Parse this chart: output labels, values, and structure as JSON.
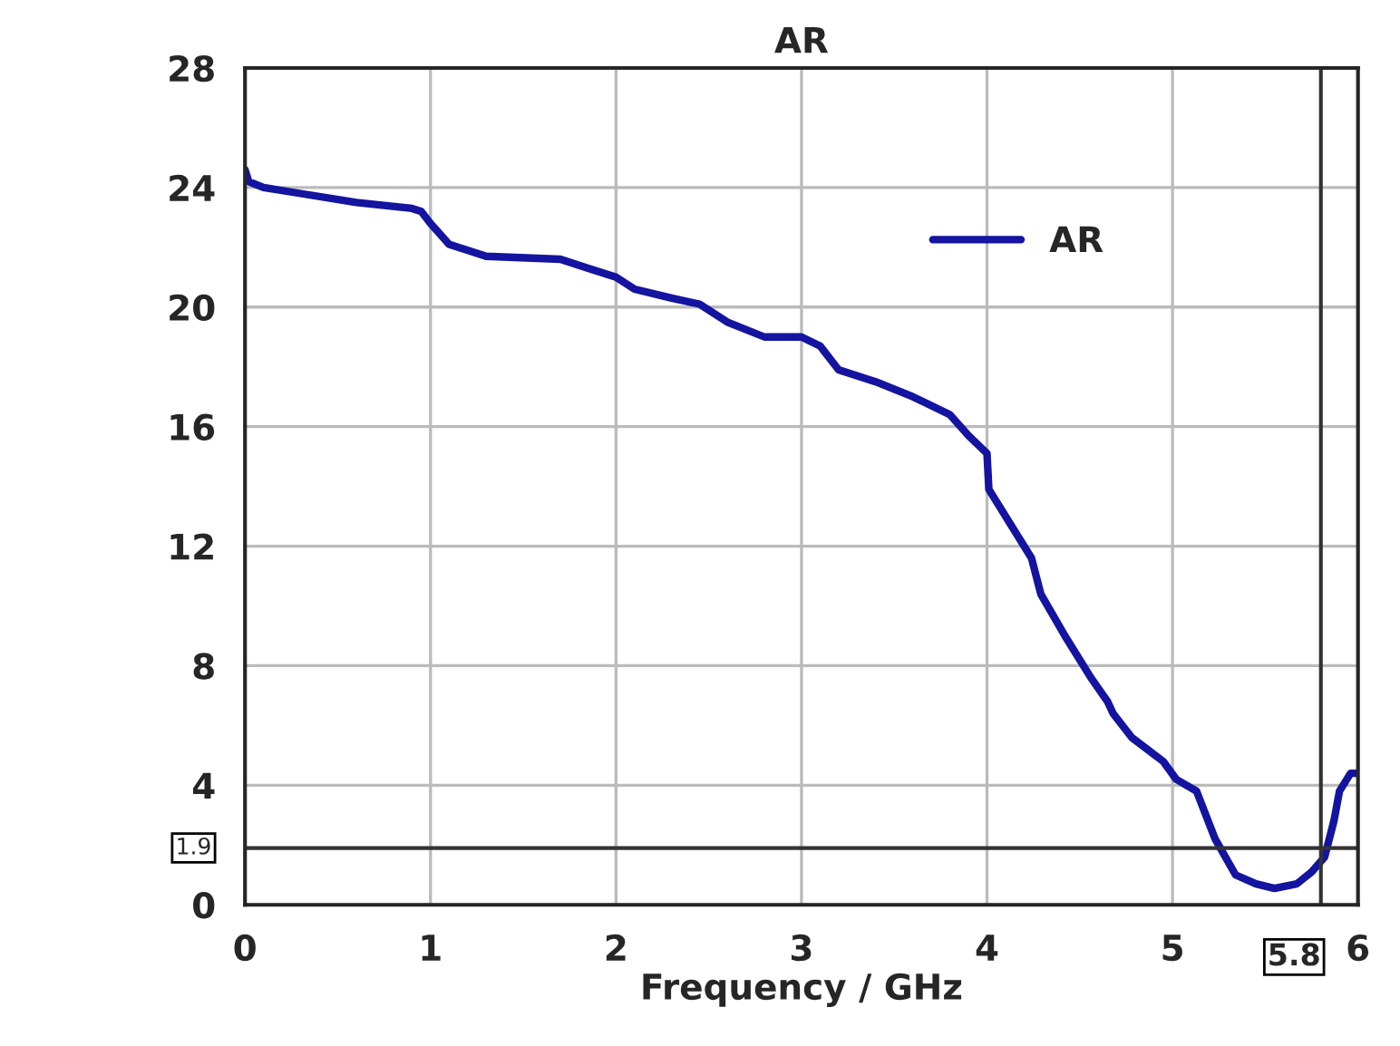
{
  "chart_data": {
    "type": "line",
    "title": "AR",
    "xlabel": "Frequency / GHz",
    "x": [
      0,
      0.02,
      0.1,
      0.3,
      0.6,
      0.9,
      0.95,
      1.0,
      1.1,
      1.3,
      1.7,
      1.85,
      2.0,
      2.1,
      2.3,
      2.45,
      2.6,
      2.8,
      3.0,
      3.1,
      3.2,
      3.4,
      3.6,
      3.8,
      3.9,
      4.0,
      4.01,
      4.24,
      4.29,
      4.42,
      4.56,
      4.65,
      4.68,
      4.78,
      4.95,
      5.02,
      5.13,
      5.23,
      5.34,
      5.45,
      5.55,
      5.67,
      5.75,
      5.82,
      5.87,
      5.9,
      5.96,
      6.0
    ],
    "series": [
      {
        "name": "AR",
        "color": "#1414a0",
        "values": [
          24.6,
          24.2,
          24.0,
          23.8,
          23.5,
          23.3,
          23.2,
          22.8,
          22.1,
          21.7,
          21.6,
          21.3,
          21.0,
          20.6,
          20.3,
          20.1,
          19.5,
          19.0,
          19.0,
          18.7,
          17.9,
          17.5,
          17.0,
          16.4,
          15.7,
          15.1,
          13.9,
          11.6,
          10.4,
          9.0,
          7.6,
          6.8,
          6.4,
          5.6,
          4.8,
          4.2,
          3.8,
          2.2,
          1.0,
          0.7,
          0.55,
          0.7,
          1.1,
          1.6,
          2.8,
          3.8,
          4.4,
          4.4
        ]
      }
    ],
    "xlim": [
      0,
      6
    ],
    "xticks": [
      0,
      1,
      2,
      3,
      4,
      5,
      6
    ],
    "ylim": [
      0,
      28
    ],
    "yticks": [
      0,
      4,
      8,
      12,
      16,
      20,
      24,
      28
    ],
    "ref_lines": [
      {
        "axis": "y",
        "value": 1.9,
        "label": "1.9",
        "color": "#333333"
      },
      {
        "axis": "x",
        "value": 5.8,
        "label": "5.8",
        "color": "#333333"
      }
    ],
    "grid": true,
    "legend": "top right",
    "marker": "none",
    "line_style": "solid"
  }
}
